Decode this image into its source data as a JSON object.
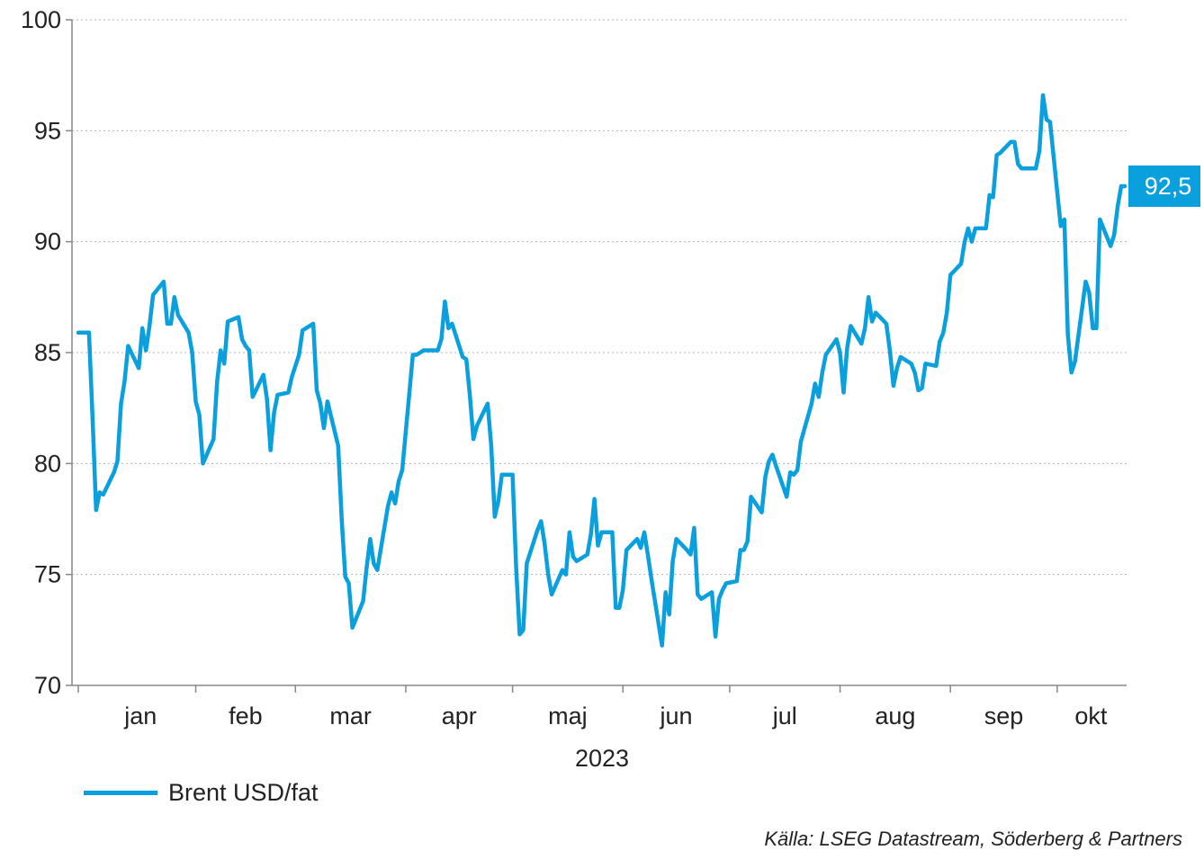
{
  "chart_data": {
    "type": "line",
    "title": "",
    "xlabel": "2023",
    "ylabel": "",
    "ylim": [
      70,
      100
    ],
    "yticks": [
      70,
      75,
      80,
      85,
      90,
      95,
      100
    ],
    "grid": true,
    "month_labels": [
      "jan",
      "feb",
      "mar",
      "apr",
      "maj",
      "jun",
      "jul",
      "aug",
      "sep",
      "okt"
    ],
    "series": [
      {
        "name": "Brent USD/fat",
        "color": "#0aa0dd",
        "last_value_label": "92,5",
        "x": [
          "2022-12-30",
          "2023-01-02",
          "2023-01-03",
          "2023-01-04",
          "2023-01-05",
          "2023-01-06",
          "2023-01-09",
          "2023-01-10",
          "2023-01-11",
          "2023-01-12",
          "2023-01-13",
          "2023-01-16",
          "2023-01-17",
          "2023-01-18",
          "2023-01-19",
          "2023-01-20",
          "2023-01-23",
          "2023-01-24",
          "2023-01-25",
          "2023-01-26",
          "2023-01-27",
          "2023-01-30",
          "2023-01-31",
          "2023-02-01",
          "2023-02-02",
          "2023-02-03",
          "2023-02-06",
          "2023-02-07",
          "2023-02-08",
          "2023-02-09",
          "2023-02-10",
          "2023-02-13",
          "2023-02-14",
          "2023-02-15",
          "2023-02-16",
          "2023-02-17",
          "2023-02-20",
          "2023-02-21",
          "2023-02-22",
          "2023-02-23",
          "2023-02-24",
          "2023-02-27",
          "2023-02-28",
          "2023-03-01",
          "2023-03-02",
          "2023-03-03",
          "2023-03-06",
          "2023-03-07",
          "2023-03-08",
          "2023-03-09",
          "2023-03-10",
          "2023-03-13",
          "2023-03-14",
          "2023-03-15",
          "2023-03-16",
          "2023-03-17",
          "2023-03-20",
          "2023-03-21",
          "2023-03-22",
          "2023-03-23",
          "2023-03-24",
          "2023-03-27",
          "2023-03-28",
          "2023-03-29",
          "2023-03-30",
          "2023-03-31",
          "2023-04-03",
          "2023-04-04",
          "2023-04-05",
          "2023-04-06",
          "2023-04-07",
          "2023-04-10",
          "2023-04-11",
          "2023-04-12",
          "2023-04-13",
          "2023-04-14",
          "2023-04-17",
          "2023-04-18",
          "2023-04-19",
          "2023-04-20",
          "2023-04-21",
          "2023-04-24",
          "2023-04-25",
          "2023-04-26",
          "2023-04-27",
          "2023-04-28",
          "2023-05-01",
          "2023-05-02",
          "2023-05-03",
          "2023-05-04",
          "2023-05-05",
          "2023-05-08",
          "2023-05-09",
          "2023-05-10",
          "2023-05-11",
          "2023-05-12",
          "2023-05-15",
          "2023-05-16",
          "2023-05-17",
          "2023-05-18",
          "2023-05-19",
          "2023-05-22",
          "2023-05-23",
          "2023-05-24",
          "2023-05-25",
          "2023-05-26",
          "2023-05-29",
          "2023-05-30",
          "2023-05-31",
          "2023-06-01",
          "2023-06-02",
          "2023-06-05",
          "2023-06-06",
          "2023-06-07",
          "2023-06-08",
          "2023-06-09",
          "2023-06-12",
          "2023-06-13",
          "2023-06-14",
          "2023-06-15",
          "2023-06-16",
          "2023-06-19",
          "2023-06-20",
          "2023-06-21",
          "2023-06-22",
          "2023-06-23",
          "2023-06-26",
          "2023-06-27",
          "2023-06-28",
          "2023-06-29",
          "2023-06-30",
          "2023-07-03",
          "2023-07-04",
          "2023-07-05",
          "2023-07-06",
          "2023-07-07",
          "2023-07-10",
          "2023-07-11",
          "2023-07-12",
          "2023-07-13",
          "2023-07-14",
          "2023-07-17",
          "2023-07-18",
          "2023-07-19",
          "2023-07-20",
          "2023-07-21",
          "2023-07-24",
          "2023-07-25",
          "2023-07-26",
          "2023-07-27",
          "2023-07-28",
          "2023-07-31",
          "2023-08-01",
          "2023-08-02",
          "2023-08-03",
          "2023-08-04",
          "2023-08-07",
          "2023-08-08",
          "2023-08-09",
          "2023-08-10",
          "2023-08-11",
          "2023-08-14",
          "2023-08-15",
          "2023-08-16",
          "2023-08-17",
          "2023-08-18",
          "2023-08-21",
          "2023-08-22",
          "2023-08-23",
          "2023-08-24",
          "2023-08-25",
          "2023-08-28",
          "2023-08-29",
          "2023-08-30",
          "2023-08-31",
          "2023-09-01",
          "2023-09-04",
          "2023-09-05",
          "2023-09-06",
          "2023-09-07",
          "2023-09-08",
          "2023-09-11",
          "2023-09-12",
          "2023-09-13",
          "2023-09-14",
          "2023-09-15",
          "2023-09-18",
          "2023-09-19",
          "2023-09-20",
          "2023-09-21",
          "2023-09-22",
          "2023-09-25",
          "2023-09-26",
          "2023-09-27",
          "2023-09-28",
          "2023-09-29",
          "2023-10-02",
          "2023-10-03",
          "2023-10-04",
          "2023-10-05",
          "2023-10-06",
          "2023-10-09",
          "2023-10-10",
          "2023-10-11",
          "2023-10-12",
          "2023-10-13",
          "2023-10-16",
          "2023-10-17",
          "2023-10-18",
          "2023-10-19",
          "2023-10-20"
        ],
        "values": [
          85.9,
          85.9,
          82.1,
          77.9,
          78.7,
          78.6,
          79.6,
          80.1,
          82.7,
          83.7,
          85.3,
          84.3,
          86.1,
          85.1,
          86.2,
          87.6,
          88.2,
          86.3,
          86.3,
          87.5,
          86.7,
          85.9,
          85.0,
          82.8,
          82.2,
          80.0,
          81.1,
          83.7,
          85.1,
          84.5,
          86.4,
          86.6,
          85.6,
          85.3,
          85.1,
          83.0,
          84.0,
          82.9,
          80.6,
          82.3,
          83.1,
          83.2,
          83.9,
          84.4,
          84.9,
          86.0,
          86.3,
          83.3,
          82.7,
          81.6,
          82.8,
          80.8,
          77.5,
          74.9,
          74.6,
          72.6,
          73.8,
          75.3,
          76.6,
          75.5,
          75.2,
          78.1,
          78.7,
          78.2,
          79.2,
          79.7,
          84.9,
          84.9,
          85.0,
          85.1,
          85.1,
          85.1,
          85.6,
          87.3,
          86.1,
          86.3,
          84.8,
          84.7,
          83.1,
          81.1,
          81.7,
          82.7,
          80.8,
          77.6,
          78.3,
          79.5,
          79.5,
          75.3,
          72.3,
          72.5,
          75.5,
          77.0,
          77.4,
          76.4,
          75.0,
          74.1,
          75.2,
          75.0,
          76.9,
          75.8,
          75.6,
          75.9,
          76.8,
          78.4,
          76.3,
          76.9,
          76.9,
          73.5,
          73.5,
          74.3,
          76.1,
          76.6,
          76.2,
          76.9,
          75.9,
          74.8,
          71.8,
          74.2,
          73.2,
          75.6,
          76.6,
          76.1,
          75.9,
          77.1,
          74.1,
          73.9,
          74.2,
          72.2,
          73.9,
          74.3,
          74.6,
          74.7,
          76.1,
          76.1,
          76.5,
          78.5,
          77.8,
          79.4,
          80.1,
          80.4,
          79.9,
          78.5,
          79.6,
          79.5,
          79.7,
          81.0,
          82.7,
          83.6,
          83.0,
          84.1,
          84.9,
          85.6,
          85.0,
          83.2,
          85.2,
          86.2,
          85.4,
          86.1,
          87.5,
          86.4,
          86.8,
          86.3,
          85.1,
          83.5,
          84.3,
          84.8,
          84.5,
          84.1,
          83.3,
          83.4,
          84.5,
          84.4,
          85.5,
          85.9,
          86.8,
          88.5,
          89.0,
          90.0,
          90.6,
          90.0,
          90.6,
          90.6,
          92.1,
          92.0,
          93.9,
          94.0,
          94.5,
          94.5,
          93.5,
          93.3,
          93.3,
          93.3,
          94.1,
          96.6,
          95.5,
          95.4,
          90.7,
          91.0,
          85.8,
          84.1,
          84.6,
          88.2,
          87.7,
          86.1,
          86.1,
          91.0,
          89.8,
          90.3,
          91.6,
          92.5,
          92.5
        ]
      }
    ]
  },
  "source_text": "Källa: LSEG Datastream, Söderberg & Partners"
}
